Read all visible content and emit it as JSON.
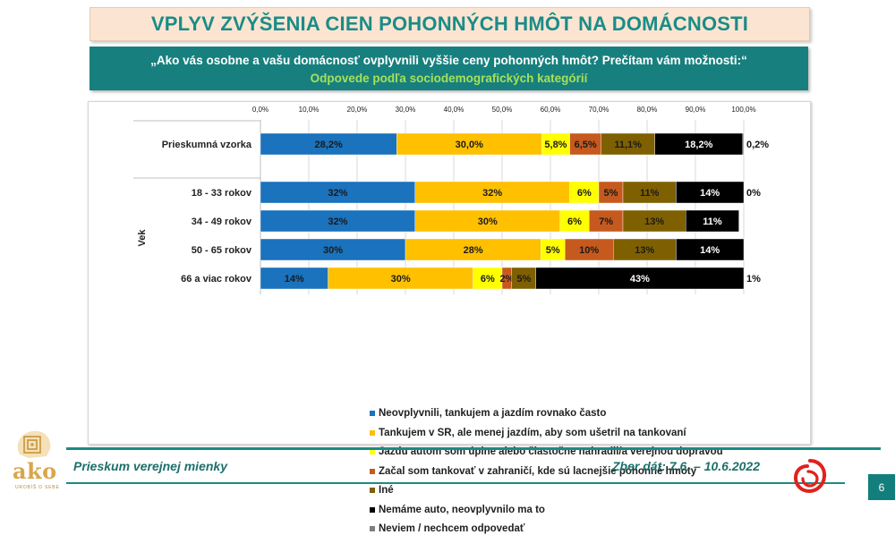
{
  "title": "VPLYV ZVÝŠENIA CIEN POHONNÝCH HMÔT NA DOMÁCNOSTI",
  "question": "„Ako vás osobne a vašu domácnosť ovplyvnili vyššie ceny pohonných hmôt? Prečítam vám možnosti:“",
  "subtitle": "Odpovede podľa sociodemografických kategórií",
  "footer": {
    "survey": "Prieskum verejnej mienky",
    "date": "Zber dát: 7.6. – 10.6.2022",
    "page": "6"
  },
  "logo": {
    "text": "ako",
    "tagline": "UROBÍŠ O SEBE"
  },
  "chart_data": {
    "type": "bar",
    "orientation": "horizontal",
    "stacked": true,
    "xlim": [
      0,
      100
    ],
    "xticks": [
      "0,0%",
      "10,0%",
      "20,0%",
      "30,0%",
      "40,0%",
      "50,0%",
      "60,0%",
      "70,0%",
      "80,0%",
      "90,0%",
      "100,0%"
    ],
    "group_label": "Vek",
    "categories": [
      "Prieskumná vzorka",
      "18 - 33 rokov",
      "34 - 49 rokov",
      "50 - 65 rokov",
      "66 a viac rokov"
    ],
    "series": [
      {
        "name": "Neovplyvnili, tankujem a jazdím rovnako často",
        "color": "#1b72bd",
        "values": [
          28.2,
          32,
          32,
          30,
          14
        ],
        "labels": [
          "28,2%",
          "32%",
          "32%",
          "30%",
          "14%"
        ]
      },
      {
        "name": "Tankujem v SR, ale menej jazdím, aby som ušetril na tankovaní",
        "color": "#ffc000",
        "values": [
          30.0,
          32,
          30,
          28,
          30
        ],
        "labels": [
          "30,0%",
          "32%",
          "30%",
          "28%",
          "30%"
        ]
      },
      {
        "name": "Jazdu autom som úplne alebo čiastočne nahradil/a verejnou dopravou",
        "color": "#ffff00",
        "values": [
          5.8,
          6,
          6,
          5,
          6
        ],
        "labels": [
          "5,8%",
          "6%",
          "6%",
          "5%",
          "6%"
        ]
      },
      {
        "name": "Začal som tankovať v zahraničí, kde sú lacnejšie pohonné hmoty",
        "color": "#c65a1e",
        "values": [
          6.5,
          5,
          7,
          10,
          2
        ],
        "labels": [
          "6,5%",
          "5%",
          "7%",
          "10%",
          "2%"
        ]
      },
      {
        "name": "Iné",
        "color": "#7f6000",
        "values": [
          11.1,
          11,
          13,
          13,
          5
        ],
        "labels": [
          "11,1%",
          "11%",
          "13%",
          "13%",
          "5%"
        ]
      },
      {
        "name": "Nemáme auto, neovplyvnilo ma to",
        "color": "#000000",
        "values": [
          18.2,
          14,
          11,
          14,
          43
        ],
        "labels": [
          "18,2%",
          "14%",
          "11%",
          "14%",
          "43%"
        ]
      },
      {
        "name": "Neviem / nechcem odpovedať",
        "color": "#7f7f7f",
        "values": [
          0.2,
          0,
          0,
          0,
          1
        ],
        "labels": [
          "0,2%",
          "0%",
          "",
          "",
          "1%"
        ]
      }
    ]
  }
}
